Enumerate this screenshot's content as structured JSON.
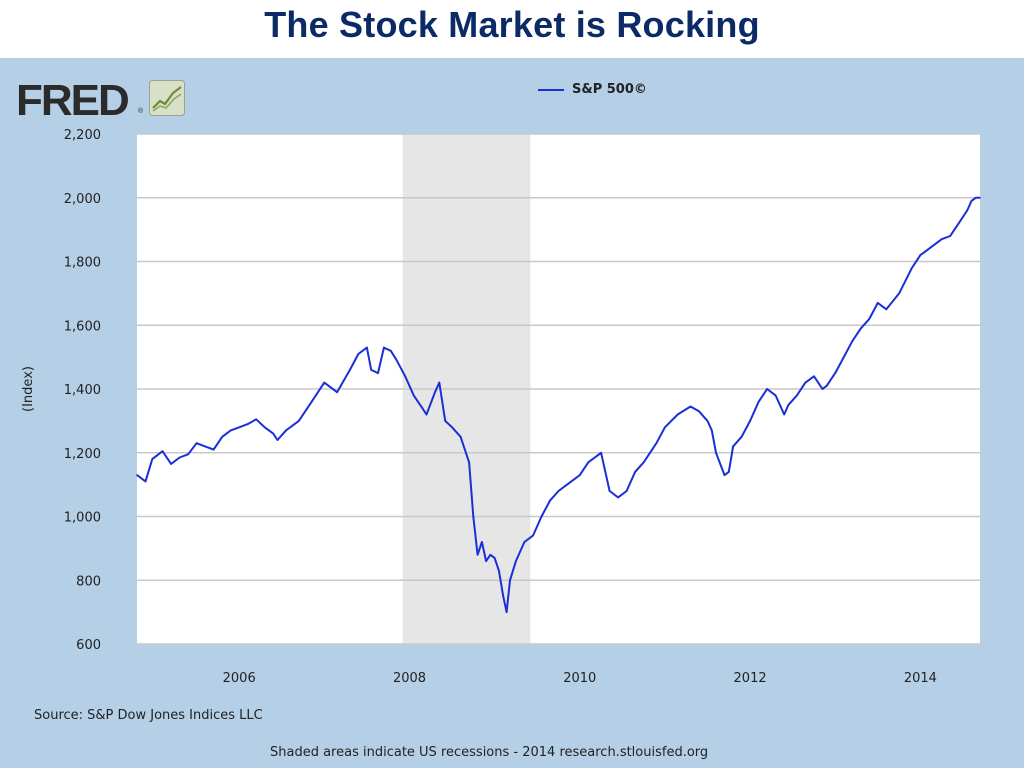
{
  "slide_title": "The Stock Market is Rocking",
  "logo_text": "FRED",
  "logo_reg": "®",
  "source": "Source: S&P Dow Jones Indices LLC",
  "footer": "Shaded areas indicate US recessions - 2014 research.stlouisfed.org",
  "colors": {
    "line": "#1a2fd6",
    "panel_bg": "#b5cfe6",
    "plot_bg": "#ffffff",
    "recession": "#e6e6e6",
    "grid": "#c8c8c8",
    "title": "#0b2a66"
  },
  "chart_data": {
    "type": "line",
    "title": "",
    "xlabel": "",
    "ylabel": "(Index)",
    "xlim": [
      2004.8,
      2014.7
    ],
    "ylim": [
      600,
      2200
    ],
    "grid": true,
    "legend_position": "top-center",
    "xticks": [
      2006,
      2008,
      2010,
      2012,
      2014
    ],
    "xtick_labels": [
      "2006",
      "2008",
      "2010",
      "2012",
      "2014"
    ],
    "yticks": [
      600,
      800,
      1000,
      1200,
      1400,
      1600,
      1800,
      2000,
      2200
    ],
    "ytick_labels": [
      "600",
      "800",
      "1,000",
      "1,200",
      "1,400",
      "1,600",
      "1,800",
      "2,000",
      "2,200"
    ],
    "recessions": [
      [
        2007.92,
        2009.42
      ]
    ],
    "series": [
      {
        "name": "S&P 500©",
        "x": [
          2004.8,
          2004.9,
          2004.98,
          2005.1,
          2005.2,
          2005.3,
          2005.4,
          2005.5,
          2005.6,
          2005.7,
          2005.8,
          2005.9,
          2006.0,
          2006.1,
          2006.2,
          2006.3,
          2006.4,
          2006.45,
          2006.55,
          2006.7,
          2006.85,
          2007.0,
          2007.15,
          2007.3,
          2007.4,
          2007.5,
          2007.55,
          2007.63,
          2007.7,
          2007.78,
          2007.85,
          2007.95,
          2008.05,
          2008.15,
          2008.2,
          2008.3,
          2008.35,
          2008.42,
          2008.5,
          2008.6,
          2008.7,
          2008.75,
          2008.8,
          2008.85,
          2008.9,
          2008.95,
          2009.0,
          2009.05,
          2009.1,
          2009.14,
          2009.18,
          2009.25,
          2009.35,
          2009.45,
          2009.55,
          2009.65,
          2009.75,
          2009.9,
          2010.0,
          2010.1,
          2010.25,
          2010.35,
          2010.45,
          2010.55,
          2010.65,
          2010.75,
          2010.9,
          2011.0,
          2011.15,
          2011.3,
          2011.4,
          2011.5,
          2011.55,
          2011.6,
          2011.7,
          2011.75,
          2011.8,
          2011.9,
          2012.0,
          2012.1,
          2012.2,
          2012.3,
          2012.4,
          2012.45,
          2012.55,
          2012.65,
          2012.75,
          2012.85,
          2012.9,
          2013.0,
          2013.1,
          2013.2,
          2013.3,
          2013.4,
          2013.5,
          2013.6,
          2013.75,
          2013.9,
          2014.0,
          2014.05,
          2014.15,
          2014.25,
          2014.35,
          2014.45,
          2014.55,
          2014.6,
          2014.65,
          2014.7
        ],
        "y": [
          1130,
          1110,
          1180,
          1205,
          1165,
          1185,
          1195,
          1230,
          1220,
          1210,
          1250,
          1270,
          1280,
          1290,
          1305,
          1280,
          1260,
          1240,
          1270,
          1300,
          1360,
          1420,
          1390,
          1460,
          1510,
          1530,
          1460,
          1450,
          1530,
          1520,
          1490,
          1440,
          1380,
          1340,
          1320,
          1390,
          1420,
          1300,
          1280,
          1250,
          1170,
          1000,
          880,
          920,
          860,
          880,
          870,
          830,
          750,
          700,
          800,
          860,
          920,
          940,
          1000,
          1050,
          1080,
          1110,
          1130,
          1170,
          1200,
          1080,
          1060,
          1080,
          1140,
          1170,
          1230,
          1280,
          1320,
          1345,
          1330,
          1300,
          1270,
          1200,
          1130,
          1140,
          1220,
          1250,
          1300,
          1360,
          1400,
          1380,
          1320,
          1350,
          1380,
          1420,
          1440,
          1400,
          1410,
          1450,
          1500,
          1550,
          1590,
          1620,
          1670,
          1650,
          1700,
          1780,
          1820,
          1830,
          1850,
          1870,
          1880,
          1920,
          1960,
          1990,
          2000,
          2000
        ]
      }
    ]
  }
}
